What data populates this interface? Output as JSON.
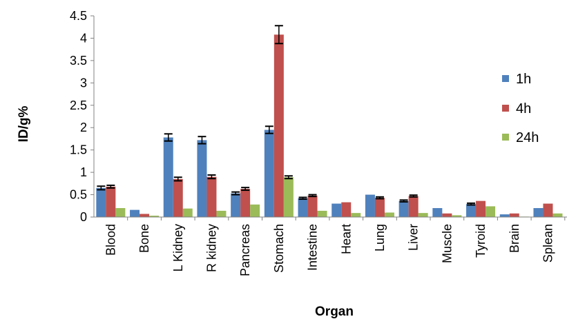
{
  "chart_data": {
    "type": "bar",
    "title": "",
    "xlabel": "Organ",
    "ylabel": "ID/g%",
    "ylim": [
      0,
      4.5
    ],
    "yticks": [
      "0",
      "0.5",
      "1",
      "1.5",
      "2",
      "2.5",
      "3",
      "3.5",
      "4",
      "4.5"
    ],
    "grid": false,
    "legend_position": "right",
    "categories": [
      "Blood",
      "Bone",
      "L Kidney",
      "R kidney",
      "Pancreas",
      "Stomach",
      "Intestine",
      "Heart",
      "Lung",
      "Liver",
      "Muscle",
      "Tyroid",
      "Brain",
      "Splean"
    ],
    "series": [
      {
        "name": "1h",
        "color": "#4F81BD",
        "values": [
          0.65,
          0.16,
          1.78,
          1.72,
          0.53,
          1.95,
          0.42,
          0.3,
          0.5,
          0.36,
          0.2,
          0.29,
          0.06,
          0.2
        ],
        "errors": [
          0.04,
          0.0,
          0.08,
          0.08,
          0.03,
          0.08,
          0.02,
          0.0,
          0.0,
          0.02,
          0.0,
          0.02,
          0.0,
          0.0
        ]
      },
      {
        "name": "4h",
        "color": "#C0504D",
        "values": [
          0.68,
          0.07,
          0.85,
          0.9,
          0.63,
          4.08,
          0.48,
          0.33,
          0.43,
          0.47,
          0.08,
          0.36,
          0.08,
          0.3
        ],
        "errors": [
          0.03,
          0.0,
          0.04,
          0.04,
          0.03,
          0.2,
          0.02,
          0.0,
          0.02,
          0.02,
          0.0,
          0.0,
          0.0,
          0.0
        ]
      },
      {
        "name": "24h",
        "color": "#9BBB59",
        "values": [
          0.2,
          0.03,
          0.19,
          0.14,
          0.28,
          0.89,
          0.14,
          0.09,
          0.1,
          0.09,
          0.04,
          0.24,
          0.01,
          0.08
        ],
        "errors": [
          0.0,
          0.0,
          0.0,
          0.0,
          0.0,
          0.03,
          0.0,
          0.0,
          0.0,
          0.0,
          0.0,
          0.0,
          0.0,
          0.0
        ]
      }
    ]
  }
}
